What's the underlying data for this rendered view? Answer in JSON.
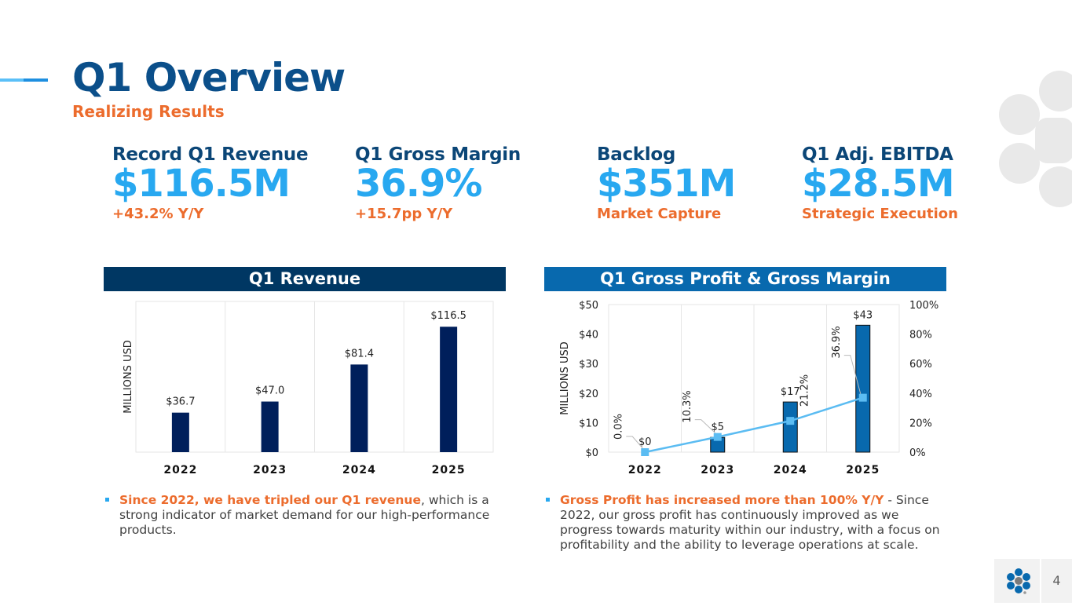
{
  "header": {
    "title": "Q1 Overview",
    "subtitle": "Realizing Results"
  },
  "kpis": [
    {
      "label": "Record Q1 Revenue",
      "value": "$116.5M",
      "sub": "+43.2% Y/Y"
    },
    {
      "label": "Q1 Gross Margin",
      "value": "36.9%",
      "sub": "+15.7pp Y/Y"
    },
    {
      "label": "Backlog",
      "value": "$351M",
      "sub": "Market Capture"
    },
    {
      "label": "Q1 Adj. EBITDA",
      "value": "$28.5M",
      "sub": "Strategic Execution"
    }
  ],
  "colors": {
    "title": "#0b4f8a",
    "accent_orange": "#ec6c2d",
    "accent_blue": "#28a8f0",
    "revenue_bar": "#001f5b",
    "gp_bar": "#0869ae",
    "margin_line": "#5bbcf2"
  },
  "chart_data": [
    {
      "type": "bar",
      "title": "Q1 Revenue",
      "categories": [
        "2022",
        "2023",
        "2024",
        "2025"
      ],
      "values": [
        36.7,
        47.0,
        81.4,
        116.5
      ],
      "data_labels": [
        "$36.7",
        "$47.0",
        "$81.4",
        "$116.5"
      ],
      "xlabel": "",
      "ylabel": "MILLIONS USD",
      "ylim": [
        0,
        140
      ],
      "grid": "vertical"
    },
    {
      "type": "bar",
      "title": "Q1 Gross Profit & Gross Margin",
      "categories": [
        "2022",
        "2023",
        "2024",
        "2025"
      ],
      "series": [
        {
          "name": "Gross Profit",
          "type": "bar",
          "axis": "left",
          "values": [
            0,
            5,
            17,
            43
          ],
          "data_labels": [
            "$0",
            "$5",
            "$17",
            "$43"
          ]
        },
        {
          "name": "Gross Margin",
          "type": "line",
          "axis": "right",
          "values": [
            0.0,
            10.3,
            21.2,
            36.9
          ],
          "data_labels": [
            "0.0%",
            "10.3%",
            "21.2%",
            "36.9%"
          ]
        }
      ],
      "ylabel": "MILLIONS USD",
      "ylim": [
        0,
        50
      ],
      "yticks": [
        "$0",
        "$10",
        "$20",
        "$30",
        "$40",
        "$50"
      ],
      "y2lim": [
        0,
        100
      ],
      "y2ticks": [
        "0%",
        "20%",
        "40%",
        "60%",
        "80%",
        "100%"
      ],
      "grid": "vertical"
    }
  ],
  "bullets": {
    "left": {
      "highlight": "Since 2022, we have tripled our Q1 revenue",
      "text": ", which is a strong indicator of market demand for our high-performance products."
    },
    "right": {
      "highlight": "Gross Profit has increased more than 100% Y/Y",
      "text": " - Since 2022, our gross profit has continuously improved as we progress towards maturity within our industry, with a focus on profitability and the ability to leverage operations at scale."
    }
  },
  "footer": {
    "page_number": "4"
  }
}
